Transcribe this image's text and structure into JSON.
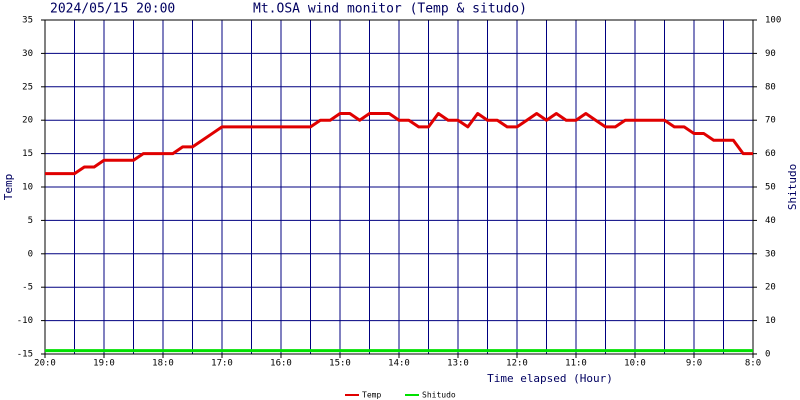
{
  "chart_data": {
    "type": "line",
    "title": "Mt.OSA wind monitor (Temp & situdo)",
    "timestamp": "2024/05/15 20:00",
    "x_label": "Time elapsed (Hour)",
    "y_label": "Temp",
    "y2_label": "Shitudo",
    "x": [
      0,
      10,
      20,
      30,
      40,
      50,
      60,
      70,
      80,
      90,
      100,
      110,
      120,
      130,
      140,
      150,
      160,
      170,
      180,
      190,
      200,
      210,
      220,
      230,
      240,
      250,
      260,
      270,
      280,
      290,
      300,
      310,
      320,
      330,
      340,
      350,
      360,
      370,
      380,
      390,
      400,
      410,
      420,
      430,
      440,
      450,
      460,
      470,
      480,
      490,
      500,
      510,
      520,
      530,
      540,
      550,
      560,
      570,
      580,
      590,
      600,
      610,
      620,
      630,
      640,
      650,
      660,
      670,
      680,
      690,
      700,
      710,
      720
    ],
    "series": [
      {
        "name": "Temp",
        "color": "#e00000",
        "axis": "y",
        "values": [
          12,
          12,
          12,
          12,
          13,
          13,
          14,
          14,
          14,
          14,
          15,
          15,
          15,
          15,
          16,
          16,
          17,
          18,
          19,
          19,
          19,
          19,
          19,
          19,
          19,
          19,
          19,
          19,
          20,
          20,
          21,
          21,
          20,
          21,
          21,
          21,
          20,
          20,
          19,
          19,
          21,
          20,
          20,
          19,
          21,
          20,
          20,
          19,
          19,
          20,
          21,
          20,
          21,
          20,
          20,
          21,
          20,
          19,
          19,
          20,
          20,
          20,
          20,
          20,
          19,
          19,
          18,
          18,
          17,
          17,
          17,
          15,
          15
        ]
      },
      {
        "name": "Shitudo",
        "color": "#00e000",
        "axis": "y2",
        "values": [
          1,
          1,
          1,
          1,
          1,
          1,
          1,
          1,
          1,
          1,
          1,
          1,
          1,
          1,
          1,
          1,
          1,
          1,
          1,
          1,
          1,
          1,
          1,
          1,
          1,
          1,
          1,
          1,
          1,
          1,
          1,
          1,
          1,
          1,
          1,
          1,
          1,
          1,
          1,
          1,
          1,
          1,
          1,
          1,
          1,
          1,
          1,
          1,
          1,
          1,
          1,
          1,
          1,
          1,
          1,
          1,
          1,
          1,
          1,
          1,
          1,
          1,
          1,
          1,
          1,
          1,
          1,
          1,
          1,
          1,
          1,
          1,
          1
        ]
      }
    ],
    "xlim": [
      0,
      720
    ],
    "xticks": [
      {
        "value": 0,
        "label": "20:0"
      },
      {
        "value": 60,
        "label": "19:0"
      },
      {
        "value": 120,
        "label": "18:0"
      },
      {
        "value": 180,
        "label": "17:0"
      },
      {
        "value": 240,
        "label": "16:0"
      },
      {
        "value": 300,
        "label": "15:0"
      },
      {
        "value": 360,
        "label": "14:0"
      },
      {
        "value": 420,
        "label": "13:0"
      },
      {
        "value": 480,
        "label": "12:0"
      },
      {
        "value": 540,
        "label": "11:0"
      },
      {
        "value": 600,
        "label": "10:0"
      },
      {
        "value": 660,
        "label": "9:0"
      },
      {
        "value": 720,
        "label": "8:0"
      }
    ],
    "xgrid": [
      30,
      90,
      150,
      210,
      270,
      330,
      390,
      450,
      510,
      570,
      630,
      690
    ],
    "ylim": [
      -15,
      35
    ],
    "yticks": [
      -15,
      -10,
      -5,
      0,
      5,
      10,
      15,
      20,
      25,
      30,
      35
    ],
    "y2lim": [
      0,
      100
    ],
    "y2ticks": [
      0,
      10,
      20,
      30,
      40,
      50,
      60,
      70,
      80,
      90,
      100
    ],
    "grid": true,
    "grid_color": "#000080",
    "legend": "bottom"
  }
}
